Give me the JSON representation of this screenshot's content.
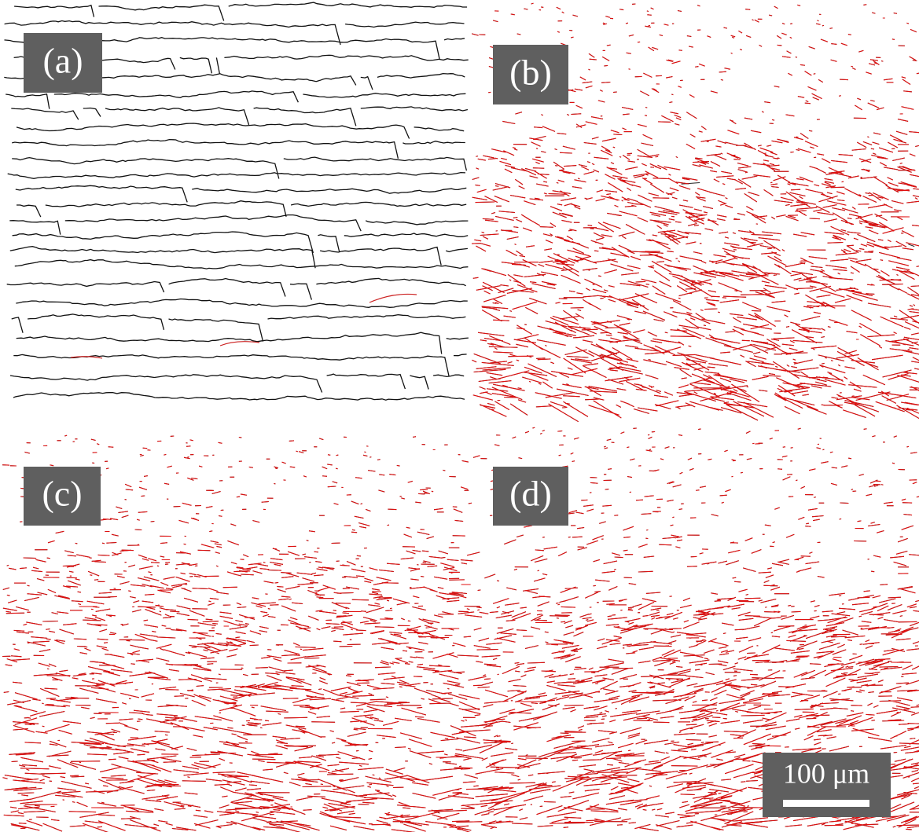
{
  "panels": [
    {
      "label": "(a)"
    },
    {
      "label": "(b)"
    },
    {
      "label": "(c)"
    },
    {
      "label": "(d)"
    }
  ],
  "scale_bar": {
    "label": "100 μm"
  }
}
